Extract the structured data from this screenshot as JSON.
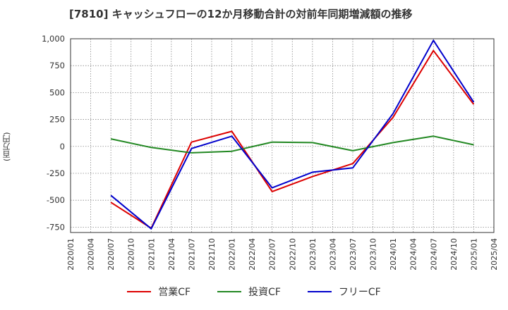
{
  "chart_data": {
    "type": "line",
    "title": "[7810]  キャッシュフローの12か月移動合計の対前年同期増減額の推移",
    "ylabel": "(百万円)",
    "xlabel": "",
    "ylim": [
      -800,
      1000
    ],
    "yticks": [
      -750,
      -500,
      -250,
      0,
      250,
      500,
      750,
      1000
    ],
    "ytick_labels": [
      "-750",
      "-500",
      "-250",
      "0",
      "250",
      "500",
      "750",
      "1,000"
    ],
    "categories": [
      "2020/01",
      "2020/04",
      "2020/07",
      "2020/10",
      "2021/01",
      "2021/04",
      "2021/07",
      "2021/10",
      "2022/01",
      "2022/04",
      "2022/07",
      "2022/10",
      "2023/01",
      "2023/04",
      "2023/07",
      "2023/10",
      "2024/01",
      "2024/04",
      "2024/07",
      "2024/10",
      "2025/01",
      "2025/04"
    ],
    "grid": true,
    "legend_position": "bottom",
    "series": [
      {
        "name": "営業CF",
        "color": "#dd0000",
        "values": [
          null,
          null,
          -520,
          null,
          -760,
          null,
          40,
          null,
          140,
          null,
          -420,
          null,
          -280,
          null,
          -160,
          null,
          270,
          null,
          890,
          null,
          390,
          null
        ]
      },
      {
        "name": "投資CF",
        "color": "#228822",
        "values": [
          null,
          null,
          70,
          null,
          -10,
          null,
          -60,
          null,
          -45,
          null,
          40,
          null,
          35,
          null,
          -40,
          null,
          35,
          null,
          95,
          null,
          15,
          null
        ]
      },
      {
        "name": "フリーCF",
        "color": "#0000cc",
        "values": [
          null,
          null,
          -455,
          null,
          -765,
          null,
          -20,
          null,
          95,
          null,
          -385,
          null,
          -240,
          null,
          -200,
          null,
          305,
          null,
          985,
          null,
          410,
          null
        ]
      }
    ]
  }
}
